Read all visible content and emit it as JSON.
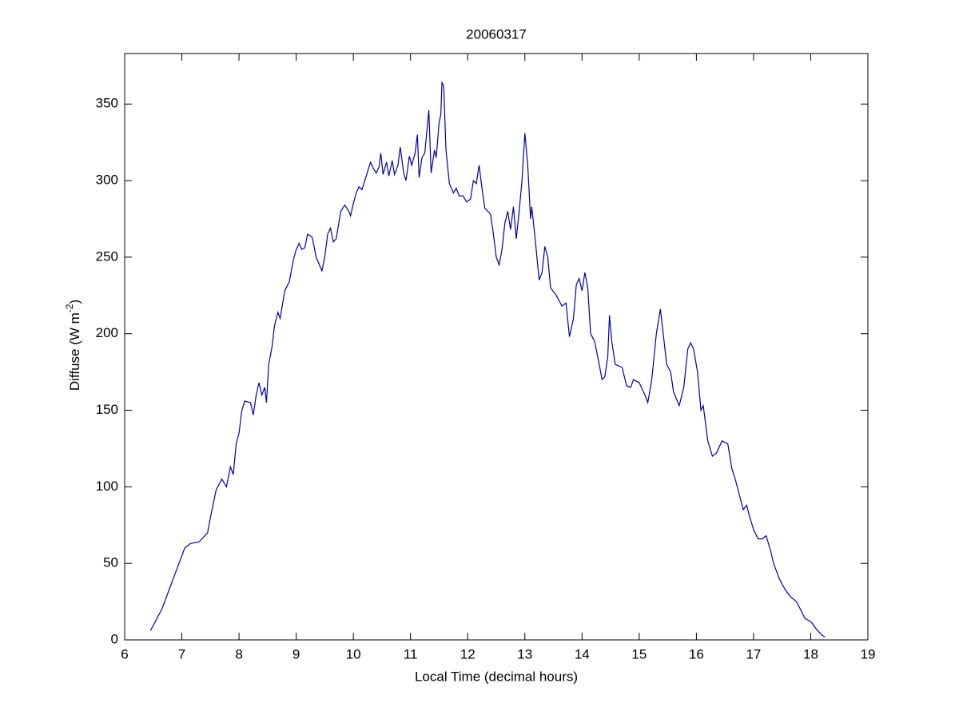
{
  "chart_data": {
    "type": "line",
    "title": "20060317",
    "xlabel": "Local Time (decimal hours)",
    "ylabel": [
      "Diffuse (W m",
      "-2",
      ")"
    ],
    "xlim": [
      6,
      19
    ],
    "xticks": [
      6,
      7,
      8,
      9,
      10,
      11,
      12,
      13,
      14,
      15,
      16,
      17,
      18,
      19
    ],
    "ylim": [
      0,
      383
    ],
    "yticks": [
      0,
      50,
      100,
      150,
      200,
      250,
      300,
      350
    ],
    "grid": false,
    "box": true,
    "series": [
      {
        "color": "#0000a8",
        "x": [
          6.45,
          6.55,
          6.65,
          6.75,
          6.85,
          6.95,
          7.05,
          7.15,
          7.3,
          7.45,
          7.5,
          7.6,
          7.7,
          7.78,
          7.85,
          7.9,
          7.95,
          8.0,
          8.05,
          8.1,
          8.2,
          8.25,
          8.3,
          8.35,
          8.4,
          8.45,
          8.48,
          8.52,
          8.58,
          8.62,
          8.68,
          8.72,
          8.8,
          8.88,
          8.95,
          9.0,
          9.05,
          9.1,
          9.15,
          9.2,
          9.28,
          9.35,
          9.45,
          9.5,
          9.55,
          9.6,
          9.65,
          9.7,
          9.78,
          9.85,
          9.92,
          9.95,
          10.0,
          10.05,
          10.1,
          10.15,
          10.2,
          10.3,
          10.35,
          10.4,
          10.45,
          10.48,
          10.52,
          10.58,
          10.62,
          10.68,
          10.72,
          10.78,
          10.82,
          10.88,
          10.92,
          10.98,
          11.02,
          11.08,
          11.12,
          11.15,
          11.2,
          11.25,
          11.32,
          11.36,
          11.42,
          11.45,
          11.5,
          11.53,
          11.55,
          11.58,
          11.62,
          11.68,
          11.75,
          11.8,
          11.85,
          11.92,
          11.98,
          12.05,
          12.1,
          12.15,
          12.2,
          12.25,
          12.3,
          12.35,
          12.4,
          12.45,
          12.5,
          12.55,
          12.6,
          12.65,
          12.7,
          12.75,
          12.8,
          12.85,
          12.9,
          12.95,
          13.0,
          13.05,
          13.1,
          13.12,
          13.18,
          13.25,
          13.3,
          13.35,
          13.4,
          13.45,
          13.55,
          13.65,
          13.72,
          13.78,
          13.85,
          13.9,
          13.95,
          14.0,
          14.05,
          14.1,
          14.15,
          14.22,
          14.3,
          14.35,
          14.4,
          14.45,
          14.48,
          14.52,
          14.58,
          14.7,
          14.78,
          14.85,
          14.9,
          15.0,
          15.1,
          15.15,
          15.22,
          15.3,
          15.37,
          15.42,
          15.48,
          15.55,
          15.6,
          15.7,
          15.78,
          15.85,
          15.9,
          15.95,
          16.02,
          16.08,
          16.12,
          16.2,
          16.28,
          16.35,
          16.45,
          16.55,
          16.62,
          16.68,
          16.75,
          16.82,
          16.88,
          16.92,
          17.0,
          17.08,
          17.15,
          17.22,
          17.3,
          17.35,
          17.45,
          17.55,
          17.65,
          17.75,
          17.82,
          17.9,
          18.0,
          18.1,
          18.2,
          18.25
        ],
        "values": [
          6,
          13,
          20,
          30,
          40,
          50,
          60,
          63,
          64,
          70,
          80,
          98,
          105,
          100,
          113,
          108,
          128,
          135,
          150,
          156,
          155,
          147,
          160,
          168,
          160,
          165,
          155,
          180,
          192,
          205,
          214,
          210,
          228,
          234,
          248,
          255,
          259,
          255,
          256,
          265,
          263,
          250,
          241,
          250,
          265,
          269,
          260,
          262,
          280,
          284,
          280,
          277,
          285,
          292,
          296,
          294,
          300,
          312,
          308,
          305,
          309,
          318,
          304,
          312,
          303,
          313,
          304,
          310,
          322,
          305,
          300,
          316,
          310,
          318,
          330,
          302,
          315,
          318,
          346,
          305,
          320,
          315,
          338,
          343,
          364,
          362,
          320,
          298,
          292,
          295,
          290,
          290,
          286,
          288,
          300,
          298,
          310,
          295,
          282,
          280,
          278,
          265,
          250,
          245,
          255,
          272,
          280,
          268,
          283,
          262,
          280,
          300,
          331,
          310,
          275,
          283,
          262,
          235,
          240,
          257,
          250,
          230,
          225,
          218,
          220,
          198,
          210,
          232,
          236,
          228,
          240,
          230,
          200,
          195,
          180,
          170,
          172,
          185,
          212,
          195,
          180,
          178,
          166,
          165,
          170,
          168,
          160,
          155,
          170,
          200,
          216,
          200,
          180,
          175,
          162,
          153,
          165,
          190,
          194,
          190,
          175,
          150,
          153,
          130,
          120,
          122,
          130,
          128,
          112,
          105,
          95,
          85,
          88,
          82,
          72,
          66,
          66,
          68,
          58,
          50,
          40,
          33,
          28,
          25,
          20,
          14,
          12,
          7,
          3,
          2
        ]
      }
    ]
  }
}
